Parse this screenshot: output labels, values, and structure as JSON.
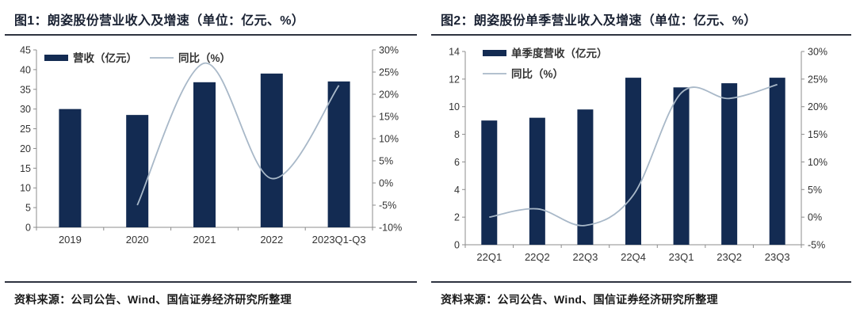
{
  "colors": {
    "bar": "#132B52",
    "line": "#A8B8C8",
    "axis_line": "#8C8C8C",
    "axis_text": "#333333",
    "title": "#1A2233",
    "rule": "#2E3340"
  },
  "chart_data": [
    {
      "type": "bar+line",
      "title": "图1：朗姿股份营业收入及增速（单位：亿元、%）",
      "source": "资料来源：公司公告、Wind、国信证券经济研究所整理",
      "categories": [
        "2019",
        "2020",
        "2021",
        "2022",
        "2023Q1-Q3"
      ],
      "series": [
        {
          "name": "营收（亿元）",
          "type": "bar",
          "axis": "left",
          "values": [
            30.0,
            28.5,
            36.8,
            39.0,
            37.0
          ]
        },
        {
          "name": "同比（%）",
          "type": "line",
          "axis": "right",
          "values": [
            null,
            -5.0,
            27.0,
            1.0,
            22.0
          ]
        }
      ],
      "left_axis": {
        "min": 0,
        "max": 45,
        "step": 5,
        "format": "number"
      },
      "right_axis": {
        "min": -10,
        "max": 30,
        "step": 5,
        "format": "percent"
      },
      "legend": {
        "orientation": "horizontal",
        "position": "top-left"
      },
      "grid": false
    },
    {
      "type": "bar+line",
      "title": "图2：朗姿股份单季营业收入及增速（单位：亿元、%）",
      "source": "资料来源：公司公告、Wind、国信证券经济研究所整理",
      "categories": [
        "22Q1",
        "22Q2",
        "22Q3",
        "22Q4",
        "23Q1",
        "23Q2",
        "23Q3"
      ],
      "series": [
        {
          "name": "单季度营收（亿元）",
          "type": "bar",
          "axis": "left",
          "values": [
            9.0,
            9.2,
            9.8,
            12.1,
            11.4,
            11.7,
            12.1
          ]
        },
        {
          "name": "同比（%）",
          "type": "line",
          "axis": "right",
          "values": [
            0.0,
            1.5,
            -1.5,
            4.0,
            22.5,
            21.5,
            24.0
          ]
        }
      ],
      "left_axis": {
        "min": 0,
        "max": 14,
        "step": 2,
        "format": "number"
      },
      "right_axis": {
        "min": -5,
        "max": 30,
        "step": 5,
        "format": "percent"
      },
      "legend": {
        "orientation": "vertical",
        "position": "top-left"
      },
      "grid": false
    }
  ]
}
